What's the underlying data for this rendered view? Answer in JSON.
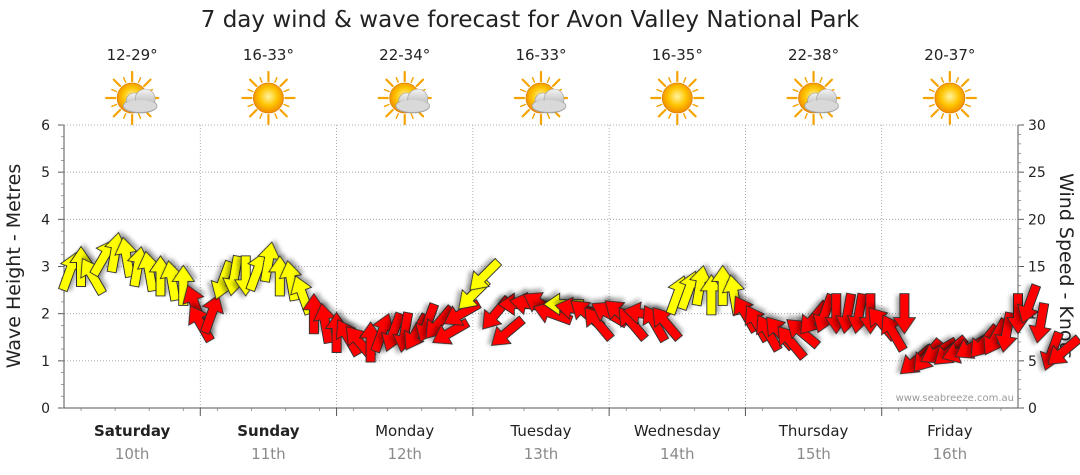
{
  "title": "7 day wind & wave forecast for Avon Valley National Park",
  "watermark": "www.seabreeze.com.au",
  "colors": {
    "wind_red": "#ff0000",
    "wind_yellow": "#ffff00",
    "grid": "#999999",
    "date_grey": "#8a8a8a"
  },
  "chart_data": {
    "type": "scatter",
    "title": "7 day wind & wave forecast for Avon Valley National Park",
    "ylabel_left": "Wave Height - Metres",
    "ylabel_right": "Wind Speed - Knots",
    "ylim_left": [
      0,
      6
    ],
    "ylim_right": [
      0,
      30
    ],
    "yticks_left": [
      "0",
      "1",
      "2",
      "3",
      "4",
      "5",
      "6"
    ],
    "yticks_right": [
      "0",
      "5",
      "10",
      "15",
      "20",
      "25",
      "30"
    ],
    "grid": true,
    "days": [
      {
        "day": "Saturday",
        "date": "10th",
        "temp": "12-29°",
        "weather": "partly-cloudy-icon",
        "bold": true
      },
      {
        "day": "Sunday",
        "date": "11th",
        "temp": "16-33°",
        "weather": "sunny-icon",
        "bold": true
      },
      {
        "day": "Monday",
        "date": "12th",
        "temp": "22-34°",
        "weather": "partly-cloudy-icon",
        "bold": false
      },
      {
        "day": "Tuesday",
        "date": "13th",
        "temp": "16-33°",
        "weather": "partly-cloudy-icon",
        "bold": false
      },
      {
        "day": "Wednesday",
        "date": "14th",
        "temp": "16-35°",
        "weather": "sunny-icon",
        "bold": false
      },
      {
        "day": "Thursday",
        "date": "15th",
        "temp": "22-38°",
        "weather": "partly-cloudy-icon",
        "bold": false
      },
      {
        "day": "Friday",
        "date": "16th",
        "temp": "20-37°",
        "weather": "sunny-icon",
        "bold": false
      }
    ],
    "wind_series": {
      "name": "wind",
      "x_unit": "hours from start",
      "points": [
        {
          "x": 1,
          "knots": 14.5,
          "dir": 200,
          "color": "yellow"
        },
        {
          "x": 3,
          "knots": 15,
          "dir": 180,
          "color": "yellow"
        },
        {
          "x": 5,
          "knots": 14,
          "dir": 150,
          "color": "yellow"
        },
        {
          "x": 7,
          "knots": 16,
          "dir": 210,
          "color": "yellow"
        },
        {
          "x": 9,
          "knots": 16.5,
          "dir": 190,
          "color": "yellow"
        },
        {
          "x": 11,
          "knots": 16,
          "dir": 170,
          "color": "yellow"
        },
        {
          "x": 13,
          "knots": 15,
          "dir": 190,
          "color": "yellow"
        },
        {
          "x": 15,
          "knots": 14.5,
          "dir": 170,
          "color": "yellow"
        },
        {
          "x": 17,
          "knots": 14,
          "dir": 180,
          "color": "yellow"
        },
        {
          "x": 19,
          "knots": 13.5,
          "dir": 170,
          "color": "yellow"
        },
        {
          "x": 21,
          "knots": 13,
          "dir": 180,
          "color": "yellow"
        },
        {
          "x": 23,
          "knots": 11,
          "dir": 160,
          "color": "red"
        },
        {
          "x": 24,
          "knots": 9,
          "dir": 150,
          "color": "red"
        },
        {
          "x": 26,
          "knots": 10,
          "dir": 200,
          "color": "red"
        },
        {
          "x": 28,
          "knots": 13.5,
          "dir": 20,
          "color": "yellow"
        },
        {
          "x": 30,
          "knots": 14,
          "dir": 10,
          "color": "yellow"
        },
        {
          "x": 32,
          "knots": 14,
          "dir": 0,
          "color": "yellow"
        },
        {
          "x": 34,
          "knots": 14.5,
          "dir": 200,
          "color": "yellow"
        },
        {
          "x": 36,
          "knots": 15.5,
          "dir": 190,
          "color": "yellow"
        },
        {
          "x": 38,
          "knots": 14,
          "dir": 180,
          "color": "yellow"
        },
        {
          "x": 40,
          "knots": 13.5,
          "dir": 170,
          "color": "yellow"
        },
        {
          "x": 42,
          "knots": 12,
          "dir": 160,
          "color": "yellow"
        },
        {
          "x": 44,
          "knots": 10,
          "dir": 180,
          "color": "red"
        },
        {
          "x": 46,
          "knots": 9,
          "dir": 170,
          "color": "red"
        },
        {
          "x": 48,
          "knots": 8,
          "dir": 180,
          "color": "red"
        },
        {
          "x": 50,
          "knots": 7.5,
          "dir": 150,
          "color": "red"
        },
        {
          "x": 52,
          "knots": 7,
          "dir": 140,
          "color": "red"
        },
        {
          "x": 54,
          "knots": 7,
          "dir": 180,
          "color": "red"
        },
        {
          "x": 56,
          "knots": 8,
          "dir": 200,
          "color": "red"
        },
        {
          "x": 58,
          "knots": 8,
          "dir": 20,
          "color": "red"
        },
        {
          "x": 60,
          "knots": 8,
          "dir": 10,
          "color": "red"
        },
        {
          "x": 62,
          "knots": 8,
          "dir": 30,
          "color": "red"
        },
        {
          "x": 64,
          "knots": 9,
          "dir": 20,
          "color": "red"
        },
        {
          "x": 66,
          "knots": 9,
          "dir": 40,
          "color": "red"
        },
        {
          "x": 68,
          "knots": 8,
          "dir": 60,
          "color": "red"
        },
        {
          "x": 70,
          "knots": 10,
          "dir": 60,
          "color": "red"
        },
        {
          "x": 72,
          "knots": 12,
          "dir": 45,
          "color": "yellow"
        },
        {
          "x": 74,
          "knots": 14,
          "dir": 45,
          "color": "yellow"
        },
        {
          "x": 76,
          "knots": 10,
          "dir": 40,
          "color": "red"
        },
        {
          "x": 78,
          "knots": 8,
          "dir": 50,
          "color": "red"
        },
        {
          "x": 80,
          "knots": 11,
          "dir": 90,
          "color": "red"
        },
        {
          "x": 82,
          "knots": 11,
          "dir": 100,
          "color": "red"
        },
        {
          "x": 84,
          "knots": 11,
          "dir": 120,
          "color": "red"
        },
        {
          "x": 86,
          "knots": 10,
          "dir": 110,
          "color": "red"
        },
        {
          "x": 88,
          "knots": 11,
          "dir": 90,
          "color": "yellow"
        },
        {
          "x": 90,
          "knots": 10.5,
          "dir": 100,
          "color": "red"
        },
        {
          "x": 92,
          "knots": 10,
          "dir": 130,
          "color": "red"
        },
        {
          "x": 94,
          "knots": 9,
          "dir": 140,
          "color": "red"
        },
        {
          "x": 96,
          "knots": 10,
          "dir": 120,
          "color": "red"
        },
        {
          "x": 98,
          "knots": 10,
          "dir": 130,
          "color": "red"
        },
        {
          "x": 100,
          "knots": 9,
          "dir": 140,
          "color": "red"
        },
        {
          "x": 102,
          "knots": 10,
          "dir": 100,
          "color": "red"
        },
        {
          "x": 104,
          "knots": 9,
          "dir": 150,
          "color": "red"
        },
        {
          "x": 106,
          "knots": 9,
          "dir": 140,
          "color": "red"
        },
        {
          "x": 108,
          "knots": 12,
          "dir": 200,
          "color": "yellow"
        },
        {
          "x": 110,
          "knots": 12.5,
          "dir": 200,
          "color": "yellow"
        },
        {
          "x": 112,
          "knots": 13,
          "dir": 190,
          "color": "yellow"
        },
        {
          "x": 114,
          "knots": 12,
          "dir": 180,
          "color": "yellow"
        },
        {
          "x": 116,
          "knots": 13,
          "dir": 180,
          "color": "yellow"
        },
        {
          "x": 118,
          "knots": 12,
          "dir": 170,
          "color": "yellow"
        },
        {
          "x": 120,
          "knots": 10,
          "dir": 150,
          "color": "red"
        },
        {
          "x": 122,
          "knots": 9,
          "dir": 150,
          "color": "red"
        },
        {
          "x": 124,
          "knots": 8,
          "dir": 150,
          "color": "red"
        },
        {
          "x": 126,
          "knots": 8,
          "dir": 140,
          "color": "red"
        },
        {
          "x": 128,
          "knots": 7,
          "dir": 140,
          "color": "red"
        },
        {
          "x": 130,
          "knots": 8,
          "dir": 130,
          "color": "red"
        },
        {
          "x": 132,
          "knots": 9.5,
          "dir": 40,
          "color": "red"
        },
        {
          "x": 134,
          "knots": 10,
          "dir": 20,
          "color": "red"
        },
        {
          "x": 136,
          "knots": 10,
          "dir": 0,
          "color": "red"
        },
        {
          "x": 138,
          "knots": 10,
          "dir": 10,
          "color": "red"
        },
        {
          "x": 140,
          "knots": 10,
          "dir": 10,
          "color": "red"
        },
        {
          "x": 142,
          "knots": 10,
          "dir": 0,
          "color": "red"
        },
        {
          "x": 144,
          "knots": 9,
          "dir": 140,
          "color": "red"
        },
        {
          "x": 146,
          "knots": 8,
          "dir": 150,
          "color": "red"
        },
        {
          "x": 148,
          "knots": 10,
          "dir": 0,
          "color": "red"
        },
        {
          "x": 150,
          "knots": 5,
          "dir": 50,
          "color": "red"
        },
        {
          "x": 152,
          "knots": 5.5,
          "dir": 40,
          "color": "red"
        },
        {
          "x": 154,
          "knots": 6,
          "dir": 60,
          "color": "red"
        },
        {
          "x": 156,
          "knots": 6,
          "dir": 50,
          "color": "red"
        },
        {
          "x": 158,
          "knots": 6,
          "dir": 70,
          "color": "red"
        },
        {
          "x": 160,
          "knots": 6.5,
          "dir": 60,
          "color": "red"
        },
        {
          "x": 162,
          "knots": 7,
          "dir": 40,
          "color": "red"
        },
        {
          "x": 164,
          "knots": 7.5,
          "dir": 30,
          "color": "red"
        },
        {
          "x": 166,
          "knots": 8,
          "dir": 10,
          "color": "red"
        },
        {
          "x": 168,
          "knots": 10,
          "dir": 0,
          "color": "red"
        },
        {
          "x": 170,
          "knots": 11,
          "dir": 20,
          "color": "red"
        },
        {
          "x": 172,
          "knots": 9,
          "dir": 10,
          "color": "red"
        },
        {
          "x": 174,
          "knots": 6,
          "dir": 20,
          "color": "red"
        },
        {
          "x": 176,
          "knots": 6,
          "dir": 50,
          "color": "red"
        }
      ]
    }
  }
}
